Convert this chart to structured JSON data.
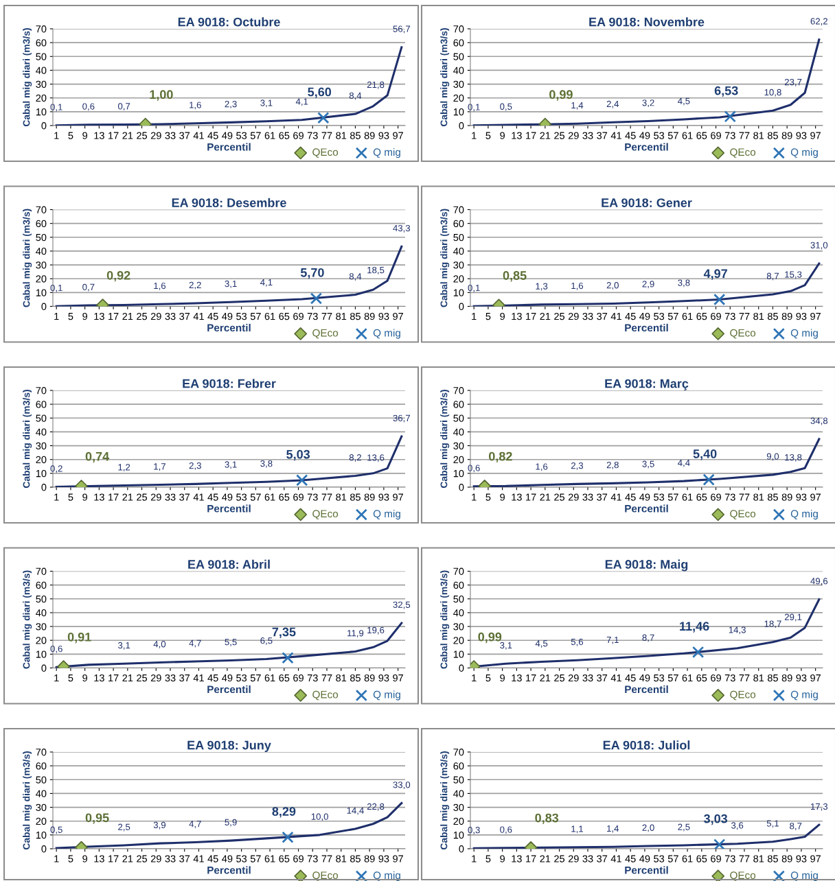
{
  "chart_data": [
    {
      "type": "line",
      "title": "EA 9018: Octubre",
      "xlabel": "Percentil",
      "ylabel": "Cabal mig diari (m3/s)",
      "xlim": [
        0,
        99
      ],
      "xticks": [
        1,
        5,
        9,
        13,
        17,
        21,
        25,
        29,
        33,
        37,
        41,
        45,
        49,
        53,
        57,
        61,
        65,
        69,
        73,
        77,
        81,
        85,
        89,
        93,
        97
      ],
      "ylim": [
        0,
        70
      ],
      "yticks": [
        0,
        10,
        20,
        30,
        40,
        50,
        60,
        70
      ],
      "grid": "y",
      "legend": "bottom right",
      "series": [
        {
          "type": "line",
          "color": "#1f2f6b",
          "marker": "none",
          "x": [
            1,
            10,
            20,
            30,
            40,
            50,
            60,
            70,
            85,
            90,
            94,
            98
          ],
          "values": [
            0.1,
            0.6,
            0.7,
            1.0,
            1.6,
            2.3,
            3.1,
            4.1,
            8.4,
            14,
            21.8,
            56.7
          ],
          "value_labels": [
            "0,1",
            "0,6",
            "0,7",
            null,
            "1,6",
            "2,3",
            "3,1",
            "4,1",
            "8,4",
            null,
            "21,8",
            "56,7"
          ]
        },
        {
          "type": "scatter",
          "name": "QEco",
          "color": "#9bbb59",
          "marker": "diamond",
          "x": [
            26
          ],
          "values": [
            1.0
          ],
          "value_labels": [
            "1,00"
          ]
        },
        {
          "type": "scatter",
          "name": "Q mig",
          "color": "#2e75b6",
          "marker": "cross",
          "x": [
            76
          ],
          "values": [
            5.6
          ],
          "value_labels": [
            "5,60"
          ]
        }
      ]
    },
    {
      "type": "line",
      "title": "EA 9018: Novembre",
      "xlabel": "Percentil",
      "ylabel": "Cabal mig diari (m3/s)",
      "xlim": [
        0,
        99
      ],
      "xticks": [
        1,
        5,
        9,
        13,
        17,
        21,
        25,
        29,
        33,
        37,
        41,
        45,
        49,
        53,
        57,
        61,
        65,
        69,
        73,
        77,
        81,
        85,
        89,
        93,
        97
      ],
      "ylim": [
        0,
        70
      ],
      "yticks": [
        0,
        10,
        20,
        30,
        40,
        50,
        60,
        70
      ],
      "grid": "y",
      "legend": "bottom right",
      "series": [
        {
          "type": "line",
          "color": "#1f2f6b",
          "marker": "none",
          "x": [
            1,
            10,
            20,
            30,
            40,
            50,
            60,
            70,
            85,
            90,
            94,
            98
          ],
          "values": [
            0.1,
            0.5,
            0.9,
            1.4,
            2.4,
            3.2,
            4.5,
            6.0,
            10.8,
            15,
            23.7,
            62.2
          ],
          "value_labels": [
            "0,1",
            "0,5",
            null,
            "1,4",
            "2,4",
            "3,2",
            "4,5",
            null,
            "10,8",
            null,
            "23,7",
            "62,2"
          ]
        },
        {
          "type": "scatter",
          "name": "QEco",
          "color": "#9bbb59",
          "marker": "diamond",
          "x": [
            21
          ],
          "values": [
            0.99
          ],
          "value_labels": [
            "0,99"
          ]
        },
        {
          "type": "scatter",
          "name": "Q mig",
          "color": "#2e75b6",
          "marker": "cross",
          "x": [
            73
          ],
          "values": [
            6.53
          ],
          "value_labels": [
            "6,53"
          ]
        }
      ]
    },
    {
      "type": "line",
      "title": "EA 9018: Desembre",
      "xlabel": "Percentil",
      "ylabel": "Cabal mig diari (m3/s)",
      "xlim": [
        0,
        99
      ],
      "xticks": [
        1,
        5,
        9,
        13,
        17,
        21,
        25,
        29,
        33,
        37,
        41,
        45,
        49,
        53,
        57,
        61,
        65,
        69,
        73,
        77,
        81,
        85,
        89,
        93,
        97
      ],
      "ylim": [
        0,
        70
      ],
      "yticks": [
        0,
        10,
        20,
        30,
        40,
        50,
        60,
        70
      ],
      "grid": "y",
      "legend": "bottom right",
      "series": [
        {
          "type": "line",
          "color": "#1f2f6b",
          "marker": "none",
          "x": [
            1,
            10,
            20,
            30,
            40,
            50,
            60,
            70,
            85,
            90,
            94,
            98
          ],
          "values": [
            0.1,
            0.7,
            1.0,
            1.6,
            2.2,
            3.1,
            4.1,
            5.2,
            8.4,
            12,
            18.5,
            43.3
          ],
          "value_labels": [
            "0,1",
            "0,7",
            null,
            "1,6",
            "2,2",
            "3,1",
            "4,1",
            null,
            "8,4",
            null,
            "18,5",
            "43,3"
          ]
        },
        {
          "type": "scatter",
          "name": "QEco",
          "color": "#9bbb59",
          "marker": "diamond",
          "x": [
            14
          ],
          "values": [
            0.92
          ],
          "value_labels": [
            "0,92"
          ]
        },
        {
          "type": "scatter",
          "name": "Q mig",
          "color": "#2e75b6",
          "marker": "cross",
          "x": [
            74
          ],
          "values": [
            5.7
          ],
          "value_labels": [
            "5,70"
          ]
        }
      ]
    },
    {
      "type": "line",
      "title": "EA 9018: Gener",
      "xlabel": "Percentil",
      "ylabel": "Cabal mig diari (m3/s)",
      "xlim": [
        0,
        99
      ],
      "xticks": [
        1,
        5,
        9,
        13,
        17,
        21,
        25,
        29,
        33,
        37,
        41,
        45,
        49,
        53,
        57,
        61,
        65,
        69,
        73,
        77,
        81,
        85,
        89,
        93,
        97
      ],
      "ylim": [
        0,
        70
      ],
      "yticks": [
        0,
        10,
        20,
        30,
        40,
        50,
        60,
        70
      ],
      "grid": "y",
      "legend": "bottom right",
      "series": [
        {
          "type": "line",
          "color": "#1f2f6b",
          "marker": "none",
          "x": [
            1,
            10,
            20,
            30,
            40,
            50,
            60,
            70,
            85,
            90,
            94,
            98
          ],
          "values": [
            0.1,
            0.6,
            1.3,
            1.6,
            2.0,
            2.9,
            3.8,
            5.0,
            8.7,
            11,
            15.3,
            31.0
          ],
          "value_labels": [
            "0,1",
            null,
            "1,3",
            "1,6",
            "2,0",
            "2,9",
            "3,8",
            null,
            "8,7",
            null,
            "15,3",
            "31,0"
          ]
        },
        {
          "type": "scatter",
          "name": "QEco",
          "color": "#9bbb59",
          "marker": "diamond",
          "x": [
            8
          ],
          "values": [
            0.85
          ],
          "value_labels": [
            "0,85"
          ]
        },
        {
          "type": "scatter",
          "name": "Q mig",
          "color": "#2e75b6",
          "marker": "cross",
          "x": [
            70
          ],
          "values": [
            4.97
          ],
          "value_labels": [
            "4,97"
          ]
        }
      ]
    },
    {
      "type": "line",
      "title": "EA 9018: Febrer",
      "xlabel": "Percentil",
      "ylabel": "Cabal mig diari (m3/s)",
      "xlim": [
        0,
        99
      ],
      "xticks": [
        1,
        5,
        9,
        13,
        17,
        21,
        25,
        29,
        33,
        37,
        41,
        45,
        49,
        53,
        57,
        61,
        65,
        69,
        73,
        77,
        81,
        85,
        89,
        93,
        97
      ],
      "ylim": [
        0,
        70
      ],
      "yticks": [
        0,
        10,
        20,
        30,
        40,
        50,
        60,
        70
      ],
      "grid": "y",
      "legend": "bottom right",
      "series": [
        {
          "type": "line",
          "color": "#1f2f6b",
          "marker": "none",
          "x": [
            1,
            10,
            20,
            30,
            40,
            50,
            60,
            70,
            85,
            90,
            94,
            98
          ],
          "values": [
            0.2,
            0.7,
            1.2,
            1.7,
            2.3,
            3.1,
            3.8,
            5.0,
            8.2,
            10,
            13.6,
            36.7
          ],
          "value_labels": [
            "0,2",
            null,
            "1,2",
            "1,7",
            "2,3",
            "3,1",
            "3,8",
            null,
            "8,2",
            null,
            "13,6",
            "36,7"
          ]
        },
        {
          "type": "scatter",
          "name": "QEco",
          "color": "#9bbb59",
          "marker": "diamond",
          "x": [
            8
          ],
          "values": [
            0.74
          ],
          "value_labels": [
            "0,74"
          ]
        },
        {
          "type": "scatter",
          "name": "Q mig",
          "color": "#2e75b6",
          "marker": "cross",
          "x": [
            70
          ],
          "values": [
            5.03
          ],
          "value_labels": [
            "5,03"
          ]
        }
      ]
    },
    {
      "type": "line",
      "title": "EA 9018: Març",
      "xlabel": "Percentil",
      "ylabel": "Cabal mig diari (m3/s)",
      "xlim": [
        0,
        99
      ],
      "xticks": [
        1,
        5,
        9,
        13,
        17,
        21,
        25,
        29,
        33,
        37,
        41,
        45,
        49,
        53,
        57,
        61,
        65,
        69,
        73,
        77,
        81,
        85,
        89,
        93,
        97
      ],
      "ylim": [
        0,
        70
      ],
      "yticks": [
        0,
        10,
        20,
        30,
        40,
        50,
        60,
        70
      ],
      "grid": "y",
      "legend": "bottom right",
      "series": [
        {
          "type": "line",
          "color": "#1f2f6b",
          "marker": "none",
          "x": [
            1,
            10,
            20,
            30,
            40,
            50,
            60,
            70,
            85,
            90,
            94,
            98
          ],
          "values": [
            0.6,
            0.8,
            1.6,
            2.3,
            2.8,
            3.5,
            4.4,
            6.0,
            9.0,
            11,
            13.8,
            34.8
          ],
          "value_labels": [
            "0,6",
            null,
            "1,6",
            "2,3",
            "2,8",
            "3,5",
            "4,4",
            null,
            "9,0",
            null,
            "13,8",
            "34,8"
          ]
        },
        {
          "type": "scatter",
          "name": "QEco",
          "color": "#9bbb59",
          "marker": "diamond",
          "x": [
            4
          ],
          "values": [
            0.82
          ],
          "value_labels": [
            "0,82"
          ]
        },
        {
          "type": "scatter",
          "name": "Q mig",
          "color": "#2e75b6",
          "marker": "cross",
          "x": [
            67
          ],
          "values": [
            5.4
          ],
          "value_labels": [
            "5,40"
          ]
        }
      ]
    },
    {
      "type": "line",
      "title": "EA 9018: Abril",
      "xlabel": "Percentil",
      "ylabel": "Cabal mig diari (m3/s)",
      "xlim": [
        0,
        99
      ],
      "xticks": [
        1,
        5,
        9,
        13,
        17,
        21,
        25,
        29,
        33,
        37,
        41,
        45,
        49,
        53,
        57,
        61,
        65,
        69,
        73,
        77,
        81,
        85,
        89,
        93,
        97
      ],
      "ylim": [
        0,
        70
      ],
      "yticks": [
        0,
        10,
        20,
        30,
        40,
        50,
        60,
        70
      ],
      "grid": "y",
      "legend": "bottom right",
      "series": [
        {
          "type": "line",
          "color": "#1f2f6b",
          "marker": "none",
          "x": [
            1,
            10,
            20,
            30,
            40,
            50,
            60,
            70,
            85,
            90,
            94,
            98
          ],
          "values": [
            0.6,
            2.3,
            3.1,
            4.0,
            4.7,
            5.5,
            6.5,
            8.5,
            11.9,
            15,
            19.6,
            32.5
          ],
          "value_labels": [
            "0,6",
            null,
            "3,1",
            "4,0",
            "4,7",
            "5,5",
            "6,5",
            null,
            "11,9",
            null,
            "19,6",
            "32,5"
          ]
        },
        {
          "type": "scatter",
          "name": "QEco",
          "color": "#9bbb59",
          "marker": "diamond",
          "x": [
            3
          ],
          "values": [
            0.91
          ],
          "value_labels": [
            "0,91"
          ]
        },
        {
          "type": "scatter",
          "name": "Q mig",
          "color": "#2e75b6",
          "marker": "cross",
          "x": [
            66
          ],
          "values": [
            7.35
          ],
          "value_labels": [
            "7,35"
          ]
        }
      ]
    },
    {
      "type": "line",
      "title": "EA 9018: Maig",
      "xlabel": "Percentil",
      "ylabel": "Cabal mig diari (m3/s)",
      "xlim": [
        0,
        99
      ],
      "xticks": [
        1,
        5,
        9,
        13,
        17,
        21,
        25,
        29,
        33,
        37,
        41,
        45,
        49,
        53,
        57,
        61,
        65,
        69,
        73,
        77,
        81,
        85,
        89,
        93,
        97
      ],
      "ylim": [
        0,
        70
      ],
      "yticks": [
        0,
        10,
        20,
        30,
        40,
        50,
        60,
        70
      ],
      "grid": "y",
      "legend": "bottom right",
      "series": [
        {
          "type": "line",
          "color": "#1f2f6b",
          "marker": "none",
          "x": [
            1,
            10,
            20,
            30,
            40,
            50,
            60,
            75,
            85,
            90,
            94,
            98
          ],
          "values": [
            1.0,
            3.1,
            4.5,
            5.6,
            7.1,
            8.7,
            10.5,
            14.3,
            18.7,
            22,
            29.1,
            49.6
          ],
          "value_labels": [
            null,
            "3,1",
            "4,5",
            "5,6",
            "7,1",
            "8,7",
            null,
            "14,3",
            "18,7",
            null,
            "29,1",
            "49,6"
          ]
        },
        {
          "type": "scatter",
          "name": "QEco",
          "color": "#9bbb59",
          "marker": "diamond",
          "x": [
            1
          ],
          "values": [
            0.99
          ],
          "value_labels": [
            "0,99"
          ]
        },
        {
          "type": "scatter",
          "name": "Q mig",
          "color": "#2e75b6",
          "marker": "cross",
          "x": [
            64
          ],
          "values": [
            11.46
          ],
          "value_labels": [
            "11,46"
          ]
        }
      ]
    },
    {
      "type": "line",
      "title": "EA 9018: Juny",
      "xlabel": "Percentil",
      "ylabel": "Cabal mig diari (m3/s)",
      "xlim": [
        0,
        99
      ],
      "xticks": [
        1,
        5,
        9,
        13,
        17,
        21,
        25,
        29,
        33,
        37,
        41,
        45,
        49,
        53,
        57,
        61,
        65,
        69,
        73,
        77,
        81,
        85,
        89,
        93,
        97
      ],
      "ylim": [
        0,
        70
      ],
      "yticks": [
        0,
        10,
        20,
        30,
        40,
        50,
        60,
        70
      ],
      "grid": "y",
      "legend": "bottom right",
      "series": [
        {
          "type": "line",
          "color": "#1f2f6b",
          "marker": "none",
          "x": [
            1,
            10,
            20,
            30,
            40,
            50,
            60,
            75,
            85,
            90,
            94,
            98
          ],
          "values": [
            0.5,
            1.5,
            2.5,
            3.9,
            4.7,
            5.9,
            7.5,
            10.0,
            14.4,
            18,
            22.8,
            33.0
          ],
          "value_labels": [
            "0,5",
            null,
            "2,5",
            "3,9",
            "4,7",
            "5,9",
            null,
            "10,0",
            "14,4",
            null,
            "22,8",
            "33,0"
          ]
        },
        {
          "type": "scatter",
          "name": "QEco",
          "color": "#9bbb59",
          "marker": "diamond",
          "x": [
            8
          ],
          "values": [
            0.95
          ],
          "value_labels": [
            "0,95"
          ]
        },
        {
          "type": "scatter",
          "name": "Q mig",
          "color": "#2e75b6",
          "marker": "cross",
          "x": [
            66
          ],
          "values": [
            8.29
          ],
          "value_labels": [
            "8,29"
          ]
        }
      ]
    },
    {
      "type": "line",
      "title": "EA 9018: Juliol",
      "xlabel": "Percentil",
      "ylabel": "Cabal mig diari (m3/s)",
      "xlim": [
        0,
        99
      ],
      "xticks": [
        1,
        5,
        9,
        13,
        17,
        21,
        25,
        29,
        33,
        37,
        41,
        45,
        49,
        53,
        57,
        61,
        65,
        69,
        73,
        77,
        81,
        85,
        89,
        93,
        97
      ],
      "ylim": [
        0,
        70
      ],
      "yticks": [
        0,
        10,
        20,
        30,
        40,
        50,
        60,
        70
      ],
      "grid": "y",
      "legend": "bottom right",
      "series": [
        {
          "type": "line",
          "color": "#1f2f6b",
          "marker": "none",
          "x": [
            1,
            10,
            20,
            30,
            40,
            50,
            60,
            75,
            85,
            90,
            94,
            98
          ],
          "values": [
            0.3,
            0.6,
            0.9,
            1.1,
            1.4,
            2.0,
            2.5,
            3.6,
            5.1,
            7,
            8.7,
            17.3
          ],
          "value_labels": [
            "0,3",
            "0,6",
            null,
            "1,1",
            "1,4",
            "2,0",
            "2,5",
            "3,6",
            "5,1",
            null,
            "8,7",
            "17,3"
          ]
        },
        {
          "type": "scatter",
          "name": "QEco",
          "color": "#9bbb59",
          "marker": "diamond",
          "x": [
            17
          ],
          "values": [
            0.83
          ],
          "value_labels": [
            "0,83"
          ]
        },
        {
          "type": "scatter",
          "name": "Q mig",
          "color": "#2e75b6",
          "marker": "cross",
          "x": [
            70
          ],
          "values": [
            3.03
          ],
          "value_labels": [
            "3,03"
          ]
        }
      ]
    }
  ]
}
